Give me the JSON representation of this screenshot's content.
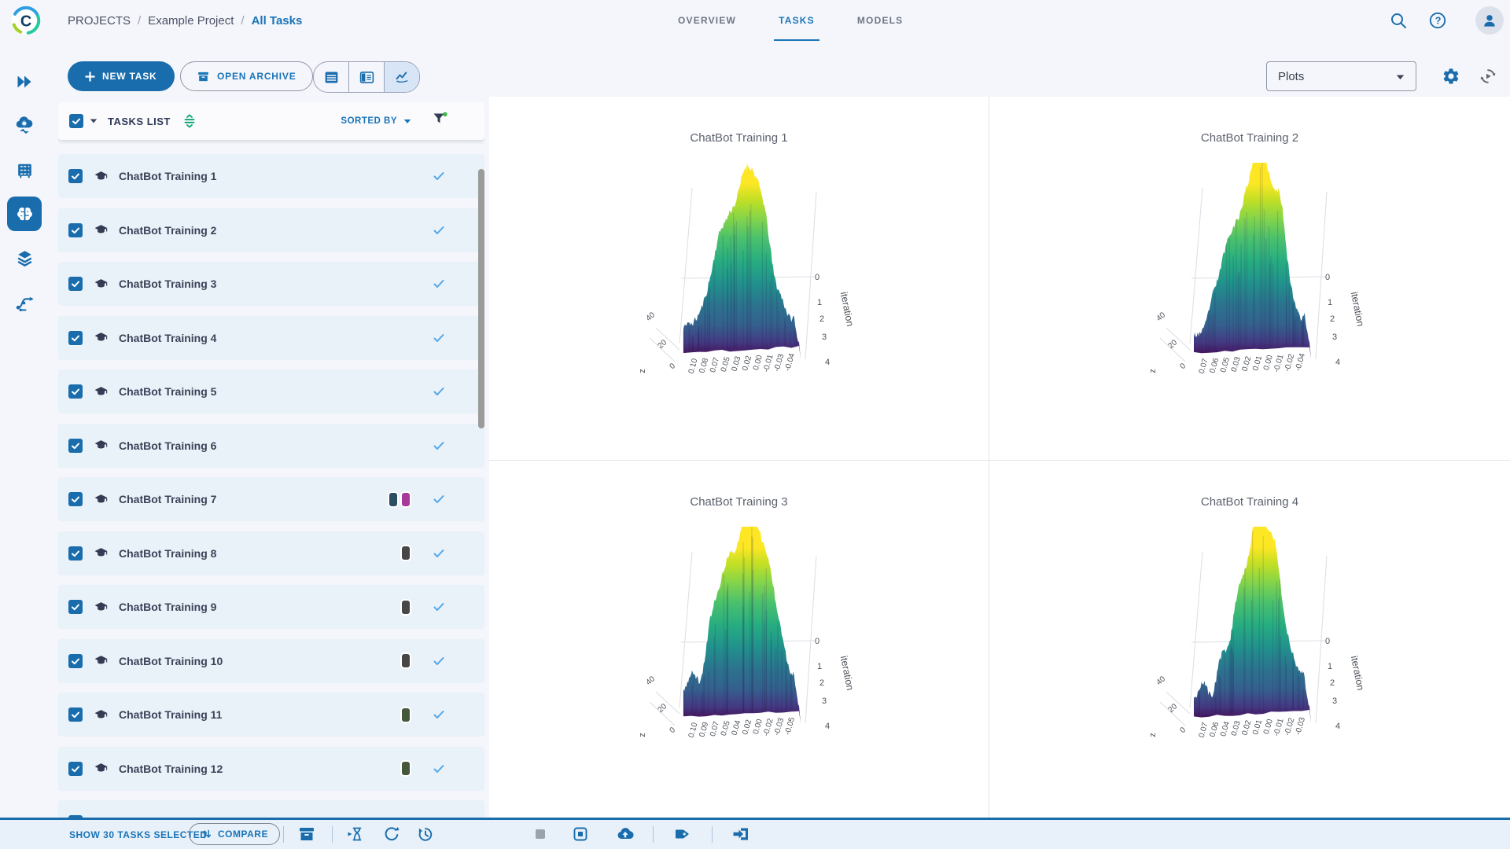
{
  "header": {
    "breadcrumb": {
      "items": [
        "PROJECTS",
        "Example Project",
        "All Tasks"
      ],
      "separator": "/"
    },
    "tabs": [
      {
        "label": "OVERVIEW",
        "active": false
      },
      {
        "label": "TASKS",
        "active": true
      },
      {
        "label": "MODELS",
        "active": false
      }
    ]
  },
  "toolbar": {
    "new_task": "NEW TASK",
    "open_archive": "OPEN ARCHIVE",
    "view_modes": [
      "table",
      "split",
      "chart"
    ],
    "active_view": "chart",
    "metric_select": {
      "value": "Plots"
    }
  },
  "tasks_panel": {
    "title": "TASKS LIST",
    "sorted_by": "SORTED BY",
    "tasks": [
      {
        "name": "ChatBot Training 1",
        "selected": true,
        "status": "completed",
        "tags": []
      },
      {
        "name": "ChatBot Training 2",
        "selected": true,
        "status": "completed",
        "tags": []
      },
      {
        "name": "ChatBot Training 3",
        "selected": true,
        "status": "completed",
        "tags": []
      },
      {
        "name": "ChatBot Training 4",
        "selected": true,
        "status": "completed",
        "tags": []
      },
      {
        "name": "ChatBot Training 5",
        "selected": true,
        "status": "completed",
        "tags": []
      },
      {
        "name": "ChatBot Training 6",
        "selected": true,
        "status": "completed",
        "tags": []
      },
      {
        "name": "ChatBot Training 7",
        "selected": true,
        "status": "completed",
        "tags": [
          "#2b4e63",
          "#a8399b"
        ]
      },
      {
        "name": "ChatBot Training 8",
        "selected": true,
        "status": "completed",
        "tags": [
          "#474747"
        ]
      },
      {
        "name": "ChatBot Training 9",
        "selected": true,
        "status": "completed",
        "tags": [
          "#474747"
        ]
      },
      {
        "name": "ChatBot Training 10",
        "selected": true,
        "status": "completed",
        "tags": [
          "#474747"
        ]
      },
      {
        "name": "ChatBot Training 11",
        "selected": true,
        "status": "completed",
        "tags": [
          "#46583c"
        ]
      },
      {
        "name": "ChatBot Training 12",
        "selected": true,
        "status": "completed",
        "tags": [
          "#46583c"
        ]
      }
    ],
    "partial_next_row": true
  },
  "chart_data": [
    {
      "type": "surface",
      "title": "ChatBot Training 1",
      "colorscale": "viridis",
      "x_tick_labels": [
        "0.10",
        "0.08",
        "0.07",
        "0.05",
        "0.03",
        "0.02",
        "0.00",
        "-0.01",
        "-0.03",
        "-0.04"
      ],
      "y_label": "iteration",
      "y_ticks": [
        "0",
        "1",
        "2",
        "3",
        "4"
      ],
      "z_label": "z",
      "z_ticks": [
        "0",
        "20",
        "40"
      ],
      "seed": 11
    },
    {
      "type": "surface",
      "title": "ChatBot Training 2",
      "colorscale": "viridis",
      "x_tick_labels": [
        "0.07",
        "0.06",
        "0.05",
        "0.03",
        "0.02",
        "0.01",
        "0.00",
        "-0.01",
        "-0.02",
        "-0.04"
      ],
      "y_label": "iteration",
      "y_ticks": [
        "0",
        "1",
        "2",
        "3",
        "4"
      ],
      "z_label": "z",
      "z_ticks": [
        "0",
        "20",
        "40"
      ],
      "seed": 23
    },
    {
      "type": "surface",
      "title": "ChatBot Training 3",
      "colorscale": "viridis",
      "x_tick_labels": [
        "0.10",
        "0.09",
        "0.07",
        "0.05",
        "0.04",
        "0.02",
        "0.00",
        "-0.02",
        "-0.03",
        "-0.05"
      ],
      "y_label": "iteration",
      "y_ticks": [
        "0",
        "1",
        "2",
        "3",
        "4"
      ],
      "z_label": "z",
      "z_ticks": [
        "0",
        "20",
        "40"
      ],
      "seed": 37
    },
    {
      "type": "surface",
      "title": "ChatBot Training 4",
      "colorscale": "viridis",
      "x_tick_labels": [
        "0.07",
        "0.06",
        "0.04",
        "0.03",
        "0.02",
        "0.01",
        "0.00",
        "-0.01",
        "-0.02",
        "-0.03"
      ],
      "y_label": "iteration",
      "y_ticks": [
        "0",
        "1",
        "2",
        "3",
        "4"
      ],
      "z_label": "z",
      "z_ticks": [
        "0",
        "20",
        "40"
      ],
      "seed": 53
    }
  ],
  "footer": {
    "selected_info": "SHOW 30 TASKS SELECTED",
    "compare": "COMPARE"
  },
  "colors": {
    "primary": "#1a6dad",
    "link_blue": "#1974b8",
    "status_check": "#54a7e8",
    "row_bg": "#e9f1f9",
    "page_bg": "#f5f6fb",
    "green_accent": "#00a470",
    "filter_dot_green": "#3cb843"
  }
}
